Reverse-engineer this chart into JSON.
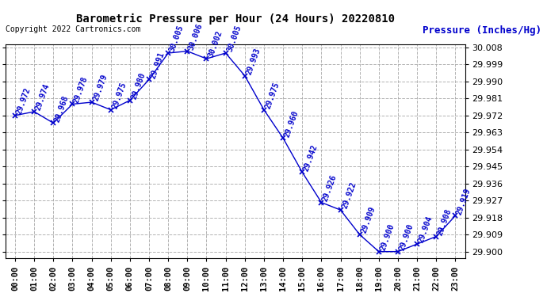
{
  "title": "Barometric Pressure per Hour (24 Hours) 20220810",
  "ylabel": "Pressure (Inches/Hg)",
  "copyright": "Copyright 2022 Cartronics.com",
  "hours": [
    "00:00",
    "01:00",
    "02:00",
    "03:00",
    "04:00",
    "05:00",
    "06:00",
    "07:00",
    "08:00",
    "09:00",
    "10:00",
    "11:00",
    "12:00",
    "13:00",
    "14:00",
    "15:00",
    "16:00",
    "17:00",
    "18:00",
    "19:00",
    "20:00",
    "21:00",
    "22:00",
    "23:00"
  ],
  "values": [
    29.972,
    29.974,
    29.968,
    29.978,
    29.979,
    29.975,
    29.98,
    29.991,
    30.005,
    30.006,
    30.002,
    30.005,
    29.993,
    29.975,
    29.96,
    29.942,
    29.926,
    29.922,
    29.909,
    29.9,
    29.9,
    29.904,
    29.908,
    29.919
  ],
  "ylim_min": 29.8964,
  "ylim_max": 30.0095,
  "ytick_start": 29.9,
  "ytick_step": 0.009,
  "ytick_count": 13,
  "line_color": "#0000CC",
  "marker_color": "#0000CC",
  "grid_color": "#AAAAAA",
  "background_color": "#FFFFFF",
  "title_color": "#000000",
  "label_color": "#0000CC",
  "annotation_fontsize": 7,
  "tick_fontsize": 7.5,
  "title_fontsize": 10,
  "copyright_fontsize": 7,
  "ylabel_fontsize": 9
}
